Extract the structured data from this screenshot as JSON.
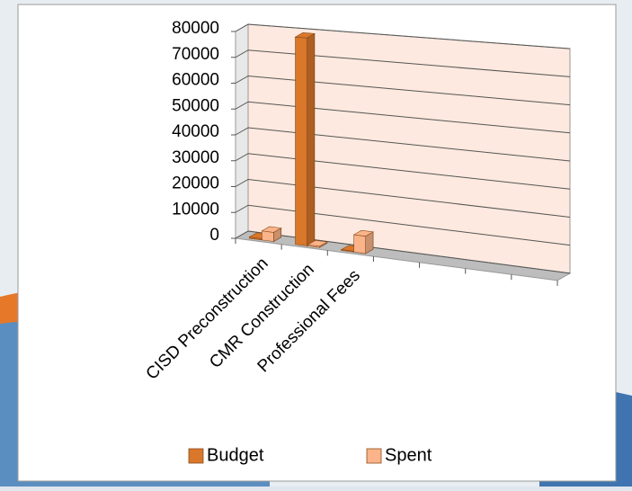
{
  "chart_data": {
    "type": "bar3d",
    "categories": [
      "CISD Preconstruction",
      "CMR Construction",
      "Professional Fees",
      null,
      null,
      null,
      null
    ],
    "series": [
      {
        "name": "Budget",
        "color": "#d9772b",
        "values": [
          500,
          79000,
          300,
          null,
          null,
          null,
          null
        ]
      },
      {
        "name": "Spent",
        "color": "#fbb48a",
        "values": [
          3500,
          500,
          6500,
          null,
          null,
          null,
          null
        ]
      }
    ],
    "ylim": [
      0,
      80000
    ],
    "yticks": [
      0,
      10000,
      20000,
      30000,
      40000,
      50000,
      60000,
      70000,
      80000
    ],
    "grid": true,
    "legend": "bottom"
  }
}
